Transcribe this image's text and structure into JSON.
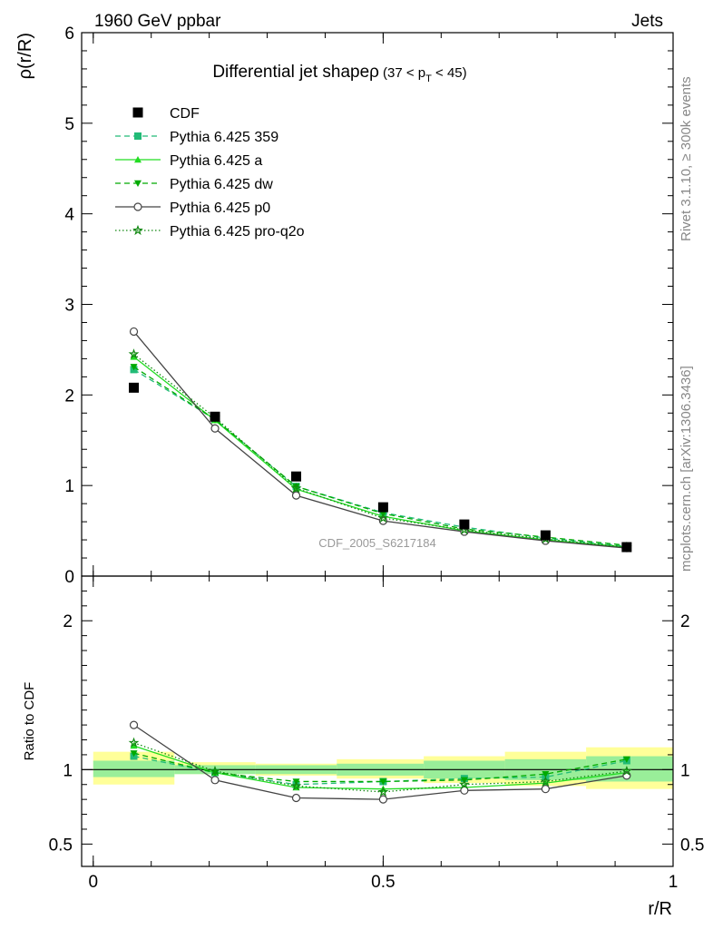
{
  "header": {
    "energy_label": "1960 GeV ppbar",
    "category_label": "Jets"
  },
  "side_labels": {
    "rivet": "Rivet 3.1.10, ≥ 300k events",
    "mcplots": "mcplots.cern.ch [arXiv:1306.3436]"
  },
  "chart_data": {
    "type": "line",
    "title": "Differential jet shapeρ",
    "title_suffix": "(37 < p_T < 45)",
    "title_suffix_parts": {
      "open": "(37 < p",
      "sub": "T",
      "close": " < 45)"
    },
    "analysis_label": "CDF_2005_S6217184",
    "xlabel": "r/R",
    "ylabel": "ρ(r/R)",
    "ratio_ylabel": "Ratio to CDF",
    "xlim": [
      -0.02,
      1.0
    ],
    "ylim": [
      0,
      6
    ],
    "ratio_ylim": [
      0.35,
      2.3
    ],
    "x_ticks": [
      0,
      0.5,
      1
    ],
    "x_tick_labels": [
      "0",
      "0.5",
      "1"
    ],
    "y_ticks": [
      0,
      1,
      2,
      3,
      4,
      5,
      6
    ],
    "y_tick_labels": [
      "0",
      "1",
      "2",
      "3",
      "4",
      "5",
      "6"
    ],
    "ratio_ticks": [
      0.5,
      1,
      2
    ],
    "ratio_tick_labels": [
      "0.5",
      "1",
      "2"
    ],
    "x": [
      0.07,
      0.21,
      0.35,
      0.5,
      0.64,
      0.78,
      0.92
    ],
    "x_edges": [
      0.0,
      0.14,
      0.28,
      0.42,
      0.57,
      0.71,
      0.85,
      1.0
    ],
    "data": {
      "name": "CDF",
      "values": [
        2.08,
        1.76,
        1.1,
        0.76,
        0.57,
        0.45,
        0.32
      ],
      "ratio_band_inner": [
        [
          0.95,
          1.06
        ],
        [
          0.97,
          1.03
        ],
        [
          0.97,
          1.03
        ],
        [
          0.96,
          1.04
        ],
        [
          0.94,
          1.06
        ],
        [
          0.93,
          1.07
        ],
        [
          0.92,
          1.09
        ]
      ],
      "ratio_band_outer": [
        [
          0.9,
          1.12
        ],
        [
          0.97,
          1.05
        ],
        [
          0.96,
          1.04
        ],
        [
          0.94,
          1.07
        ],
        [
          0.91,
          1.09
        ],
        [
          0.89,
          1.12
        ],
        [
          0.87,
          1.15
        ]
      ]
    },
    "series": [
      {
        "name": "Pythia 6.425 359",
        "color": "#22bb77",
        "dash": "6,4",
        "marker": "square",
        "values": [
          2.28,
          1.73,
          0.99,
          0.7,
          0.54,
          0.42,
          0.33
        ],
        "ratio": [
          1.09,
          0.98,
          0.9,
          0.92,
          0.94,
          0.95,
          1.06
        ]
      },
      {
        "name": "Pythia 6.425 a",
        "color": "#22dd22",
        "dash": "",
        "marker": "triangle-up",
        "values": [
          2.42,
          1.72,
          0.96,
          0.66,
          0.5,
          0.4,
          0.32
        ],
        "ratio": [
          1.16,
          0.98,
          0.88,
          0.87,
          0.88,
          0.91,
          0.98
        ]
      },
      {
        "name": "Pythia 6.425 dw",
        "color": "#00aa00",
        "dash": "6,4",
        "marker": "triangle-down",
        "values": [
          2.31,
          1.73,
          0.99,
          0.69,
          0.52,
          0.43,
          0.34
        ],
        "ratio": [
          1.11,
          0.98,
          0.92,
          0.92,
          0.93,
          0.97,
          1.07
        ]
      },
      {
        "name": "Pythia 6.425 p0",
        "color": "#444444",
        "dash": "",
        "marker": "circle-open",
        "values": [
          2.7,
          1.63,
          0.89,
          0.61,
          0.49,
          0.39,
          0.31
        ],
        "ratio": [
          1.3,
          0.93,
          0.81,
          0.8,
          0.86,
          0.87,
          0.96
        ]
      },
      {
        "name": "Pythia 6.425 pro-q2o",
        "color": "#118811",
        "dash": "1.5,2.5",
        "marker": "star-open",
        "values": [
          2.45,
          1.75,
          0.97,
          0.64,
          0.51,
          0.41,
          0.32
        ],
        "ratio": [
          1.18,
          0.99,
          0.89,
          0.85,
          0.9,
          0.92,
          0.99
        ]
      }
    ],
    "colors": {
      "band_inner": "#99ee99",
      "band_outer": "#ffff99",
      "data": "#000000"
    }
  }
}
